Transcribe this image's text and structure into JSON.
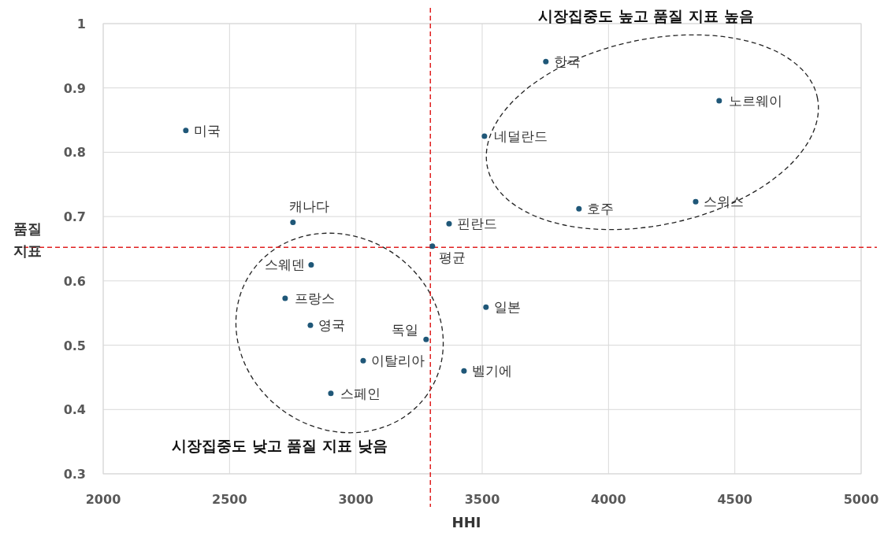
{
  "chart_data": {
    "type": "scatter",
    "xlabel": "HHI",
    "ylabel": "품질 지표",
    "x": [
      2327,
      2751,
      2823,
      2720,
      2820,
      3029,
      2901,
      3278,
      3303,
      3369,
      3515,
      3428,
      3752,
      3509,
      3883,
      4438,
      4345
    ],
    "series": [
      {
        "color": "#1f5778",
        "values": [
          0.834,
          0.691,
          0.625,
          0.573,
          0.531,
          0.476,
          0.425,
          0.509,
          0.654,
          0.689,
          0.559,
          0.46,
          0.941,
          0.825,
          0.712,
          0.88,
          0.723
        ]
      }
    ],
    "xlim": [
      2000,
      5000
    ],
    "ylim": [
      0.3,
      1
    ],
    "xticks": [
      2000,
      2500,
      3000,
      3500,
      4000,
      4500,
      5000
    ],
    "yticks": [
      0.3,
      0.4,
      0.5,
      0.6,
      0.7,
      0.8,
      0.9,
      1
    ],
    "grid": true,
    "marker": "circle",
    "ref_lines": [
      {
        "axis": "x",
        "value": 3295,
        "color": "#e02020",
        "line_style": "dashed"
      },
      {
        "axis": "y",
        "value": 0.652,
        "color": "#e02020",
        "line_style": "dashed"
      }
    ],
    "annotations": [
      {
        "text": "미국",
        "x": 2327,
        "y": 0.834
      },
      {
        "text": "캐나다",
        "x": 2751,
        "y": 0.691
      },
      {
        "text": "스웨덴",
        "x": 2823,
        "y": 0.625
      },
      {
        "text": "프랑스",
        "x": 2720,
        "y": 0.573
      },
      {
        "text": "영국",
        "x": 2820,
        "y": 0.531
      },
      {
        "text": "이탈리아",
        "x": 3029,
        "y": 0.476
      },
      {
        "text": "스페인",
        "x": 2901,
        "y": 0.425
      },
      {
        "text": "독일",
        "x": 3278,
        "y": 0.509
      },
      {
        "text": "평균",
        "x": 3303,
        "y": 0.654
      },
      {
        "text": "핀란드",
        "x": 3369,
        "y": 0.689
      },
      {
        "text": "일본",
        "x": 3515,
        "y": 0.559
      },
      {
        "text": "벨기에",
        "x": 3428,
        "y": 0.46
      },
      {
        "text": "한국",
        "x": 3752,
        "y": 0.941
      },
      {
        "text": "네덜란드",
        "x": 3509,
        "y": 0.825
      },
      {
        "text": "호주",
        "x": 3883,
        "y": 0.712
      },
      {
        "text": "노르웨이",
        "x": 4438,
        "y": 0.88
      },
      {
        "text": "스위스",
        "x": 4345,
        "y": 0.723
      },
      "시장집중도 높고 품질 지표 높음",
      "시장집중도 낮고 품질 지표 낮음"
    ]
  }
}
